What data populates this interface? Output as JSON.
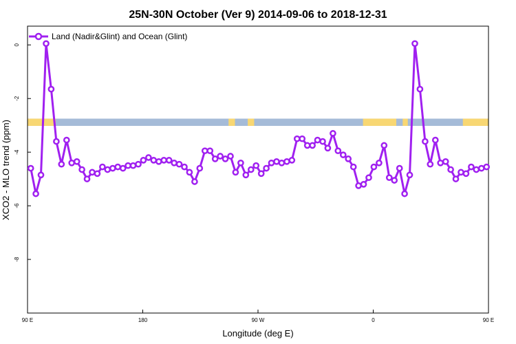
{
  "chart_data": {
    "type": "line",
    "title": "25N-30N October (Ver 9)   2014-09-06 to 2018-12-31",
    "xlabel": "Longitude (deg E)",
    "ylabel": "XCO2 - MLO trend (ppm)",
    "xlim": [
      90,
      450
    ],
    "ylim": [
      -10,
      0.7
    ],
    "x_ticks": [
      {
        "value": 90,
        "label": "90 E"
      },
      {
        "value": 180,
        "label": "180"
      },
      {
        "value": 270,
        "label": "90 W"
      },
      {
        "value": 360,
        "label": "0"
      },
      {
        "value": 450,
        "label": "90 E"
      },
      {
        "value": 540,
        "label": "180"
      }
    ],
    "y_ticks": [
      {
        "value": 0,
        "label": "0"
      },
      {
        "value": -2,
        "label": "-2"
      },
      {
        "value": -4,
        "label": "-4"
      },
      {
        "value": -6,
        "label": "-6"
      },
      {
        "value": -8,
        "label": "-8"
      }
    ],
    "grid": false,
    "legend_position": "top-left",
    "series": [
      {
        "name": "Land (Nadir&Glint) and Ocean (Glint)",
        "color": "#a020f0",
        "x": [
          92.5,
          96.5,
          100.5,
          104.5,
          108.5,
          112.5,
          116.5,
          120.5,
          124.5,
          128.5,
          132.5,
          136.5,
          140.5,
          144.5,
          148.5,
          152.5,
          156.5,
          160.5,
          164.5,
          168.5,
          172.5,
          176.5,
          180.5,
          184.5,
          188.5,
          192.5,
          196.5,
          200.5,
          204.5,
          208.5,
          212.5,
          216.5,
          220.5,
          224.5,
          228.5,
          232.5,
          236.5,
          240.5,
          244.5,
          248.5,
          252.5,
          256.5,
          260.5,
          264.5,
          268.5,
          272.5,
          276.5,
          280.5,
          284.5,
          288.5,
          292.5,
          296.5,
          300.5,
          304.5,
          308.5,
          312.5,
          316.5,
          320.5,
          324.5,
          328.5,
          332.5,
          336.5,
          340.5,
          344.5,
          348.5,
          352.5,
          356.5,
          360.5,
          364.5,
          368.5,
          372.5,
          376.5,
          380.5,
          384.5,
          388.5,
          392.5,
          396.5,
          400.5,
          404.5,
          408.5,
          412.5,
          416.5,
          420.5,
          424.5,
          428.5,
          432.5,
          436.5,
          440.5,
          444.5,
          448.5
        ],
        "y": [
          -4.6,
          -5.55,
          -4.85,
          0.05,
          -1.65,
          -3.6,
          -4.45,
          -3.55,
          -4.4,
          -4.35,
          -4.65,
          -5.0,
          -4.75,
          -4.8,
          -4.55,
          -4.65,
          -4.6,
          -4.55,
          -4.6,
          -4.5,
          -4.5,
          -4.45,
          -4.3,
          -4.2,
          -4.3,
          -4.35,
          -4.3,
          -4.3,
          -4.4,
          -4.45,
          -4.55,
          -4.75,
          -5.1,
          -4.6,
          -3.95,
          -3.95,
          -4.25,
          -4.15,
          -4.25,
          -4.15,
          -4.75,
          -4.4,
          -4.85,
          -4.65,
          -4.5,
          -4.8,
          -4.6,
          -4.4,
          -4.35,
          -4.4,
          -4.35,
          -4.3,
          -3.5,
          -3.5,
          -3.75,
          -3.75,
          -3.55,
          -3.6,
          -3.85,
          -3.3,
          -3.95,
          -4.1,
          -4.25,
          -4.55,
          -5.25,
          -5.2,
          -4.95,
          -4.55,
          -4.4,
          -3.75,
          -4.95,
          -5.05,
          -4.6,
          -5.55,
          -4.85,
          0.05,
          -1.65,
          -3.6,
          -4.45,
          -3.55,
          -4.4,
          -4.35,
          -4.65,
          -5.0,
          -4.75,
          -4.8,
          -4.55,
          -4.65,
          -4.6,
          -4.55
        ]
      }
    ],
    "map_band": {
      "y_range": [
        -3.02,
        -2.75
      ],
      "ocean_color": "#a5bbd8",
      "land_color": "#f8d773",
      "land_segments": [
        [
          90,
          112
        ],
        [
          247,
          252
        ],
        [
          262,
          267
        ],
        [
          352,
          378
        ],
        [
          383,
          387
        ],
        [
          430,
          451
        ]
      ]
    }
  }
}
